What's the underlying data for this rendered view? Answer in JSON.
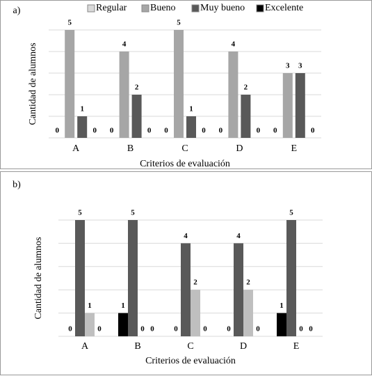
{
  "chart_data": [
    {
      "type": "bar",
      "label": "a)",
      "y_label": "Cantidad de alumnos",
      "x_label": "Criterios de evaluación",
      "categories": [
        "A",
        "B",
        "C",
        "D",
        "E"
      ],
      "series": [
        {
          "name": "Regular",
          "color": "#d9d9d9",
          "values": [
            0,
            0,
            0,
            0,
            0
          ]
        },
        {
          "name": "Bueno",
          "color": "#a6a6a6",
          "values": [
            5,
            4,
            5,
            4,
            3
          ]
        },
        {
          "name": "Muy bueno",
          "color": "#595959",
          "values": [
            1,
            2,
            1,
            2,
            3
          ]
        },
        {
          "name": "Excelente",
          "color": "#000000",
          "values": [
            0,
            0,
            0,
            0,
            0
          ]
        }
      ],
      "ylim": [
        0,
        5
      ],
      "yticks": [
        0,
        1,
        2,
        3,
        4,
        5
      ],
      "grid": true,
      "legend": "top"
    },
    {
      "type": "bar",
      "label": "b)",
      "y_label": "Cantidad de alumnos",
      "x_label": "Criterios de evaluación",
      "categories": [
        "A",
        "B",
        "C",
        "D",
        "E"
      ],
      "series": [
        {
          "color": "#000000",
          "values": [
            0,
            1,
            0,
            0,
            1
          ]
        },
        {
          "color": "#595959",
          "values": [
            5,
            5,
            4,
            4,
            5
          ]
        },
        {
          "color": "#bfbfbf",
          "values": [
            1,
            0,
            2,
            2,
            0
          ]
        },
        {
          "color": "#d9d9d9",
          "values": [
            0,
            0,
            0,
            0,
            0
          ]
        }
      ],
      "ylim": [
        0,
        5
      ],
      "yticks": [
        0,
        1,
        2,
        3,
        4,
        5
      ],
      "grid": true
    }
  ]
}
